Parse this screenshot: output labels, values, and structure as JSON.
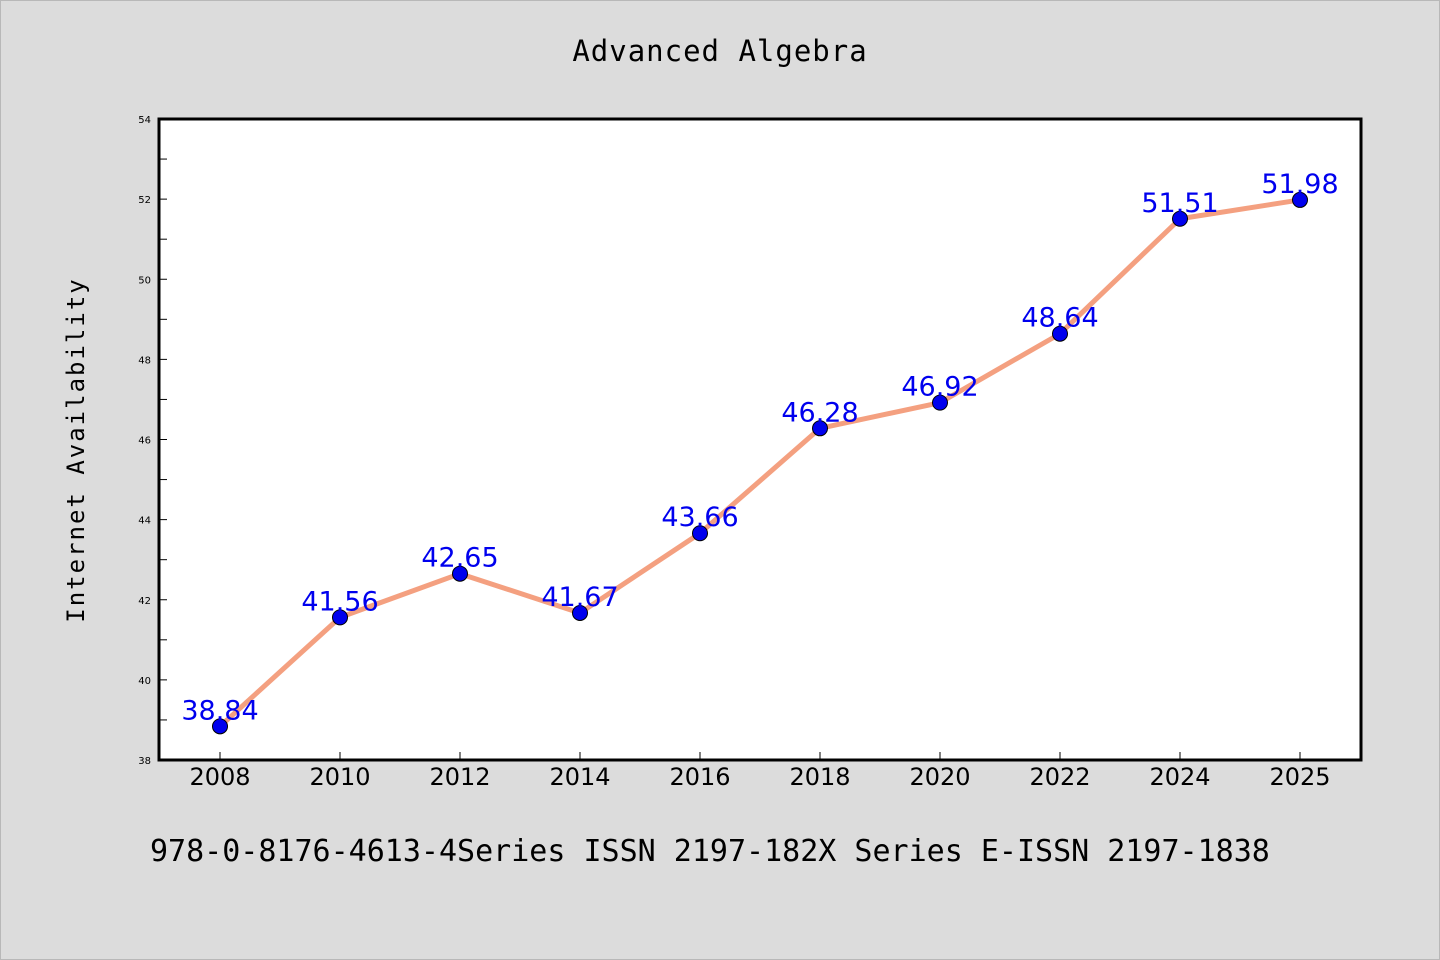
{
  "chart_data": {
    "type": "line",
    "title": "Advanced Algebra",
    "xlabel": "",
    "ylabel": "Internet Availability",
    "categories": [
      "2008",
      "2010",
      "2012",
      "2014",
      "2016",
      "2018",
      "2020",
      "2022",
      "2024",
      "2025"
    ],
    "series": [
      {
        "values": [
          38.84,
          41.56,
          42.65,
          41.67,
          43.66,
          46.28,
          46.92,
          48.64,
          51.51,
          51.98
        ],
        "line_color": "#f4a080",
        "marker_color": "#0000ee"
      }
    ],
    "data_labels": [
      "38.84",
      "41.56",
      "42.65",
      "41.67",
      "43.66",
      "46.28",
      "46.92",
      "48.64",
      "51.51",
      "51.98"
    ],
    "ylim": [
      38,
      54
    ],
    "yticks": [
      "38",
      "40",
      "42",
      "44",
      "46",
      "48",
      "50",
      "52",
      "54"
    ],
    "grid": false,
    "label_color": "#0000ee"
  },
  "footer": {
    "text": "978-0-8176-4613-4Series ISSN 2197-182X Series E-ISSN 2197-1838"
  }
}
